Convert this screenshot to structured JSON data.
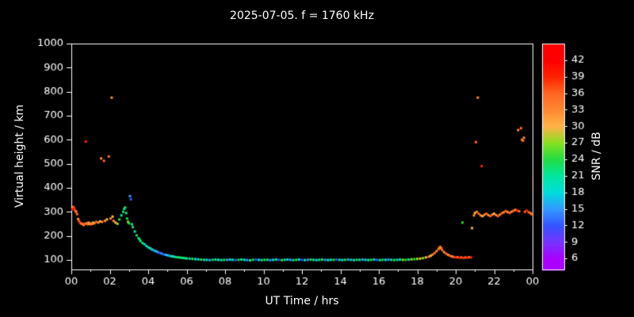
{
  "colors": {
    "background": "#000000",
    "text": "#ffffff",
    "frame": "#ffffff"
  },
  "chart_data": {
    "type": "scatter",
    "title": "2025-07-05. f = 1760 kHz",
    "xlabel": "UT Time / hrs",
    "ylabel": "Virtual height / km",
    "xlim": [
      0,
      24
    ],
    "ylim": [
      60,
      1000
    ],
    "x_ticks": [
      0,
      2,
      4,
      6,
      8,
      10,
      12,
      14,
      16,
      18,
      20,
      22,
      24
    ],
    "x_tick_labels": [
      "00",
      "02",
      "04",
      "06",
      "08",
      "10",
      "12",
      "14",
      "16",
      "18",
      "20",
      "22",
      "00"
    ],
    "x_minor_ticks": [
      1,
      3,
      5,
      7,
      9,
      11,
      13,
      15,
      17,
      19,
      21,
      23
    ],
    "y_ticks": [
      100,
      200,
      300,
      400,
      500,
      600,
      700,
      800,
      900,
      1000
    ],
    "y_tick_labels": [
      "100",
      "200",
      "300",
      "400",
      "500",
      "600",
      "700",
      "800",
      "900",
      "1000"
    ],
    "grid": false,
    "colorbar": {
      "label": "SNR / dB",
      "min": 4,
      "max": 45,
      "ticks": [
        6,
        9,
        12,
        15,
        18,
        21,
        24,
        27,
        30,
        33,
        36,
        39,
        42
      ],
      "colormap": [
        [
          6,
          "#aa00ff"
        ],
        [
          9,
          "#7733ff"
        ],
        [
          12,
          "#3355ff"
        ],
        [
          15,
          "#3399ff"
        ],
        [
          18,
          "#00dddd"
        ],
        [
          21,
          "#00e6a0"
        ],
        [
          24,
          "#22dd44"
        ],
        [
          27,
          "#88e022"
        ],
        [
          30,
          "#ffb347"
        ],
        [
          33,
          "#ff8833"
        ],
        [
          36,
          "#ff6622"
        ],
        [
          39,
          "#ff2200"
        ],
        [
          42,
          "#ff0000"
        ]
      ]
    },
    "points": [
      [
        0.05,
        310,
        39
      ],
      [
        0.1,
        320,
        36
      ],
      [
        0.15,
        315,
        39
      ],
      [
        0.2,
        305,
        36
      ],
      [
        0.25,
        300,
        33
      ],
      [
        0.3,
        290,
        36
      ],
      [
        0.35,
        270,
        33
      ],
      [
        0.4,
        262,
        36
      ],
      [
        0.45,
        255,
        39
      ],
      [
        0.5,
        252,
        36
      ],
      [
        0.55,
        250,
        33
      ],
      [
        0.6,
        248,
        36
      ],
      [
        0.65,
        245,
        33
      ],
      [
        0.7,
        250,
        36
      ],
      [
        0.75,
        592,
        39
      ],
      [
        0.8,
        252,
        33
      ],
      [
        0.85,
        248,
        36
      ],
      [
        0.9,
        255,
        33
      ],
      [
        0.95,
        250,
        30
      ],
      [
        1.0,
        248,
        33
      ],
      [
        1.05,
        252,
        36
      ],
      [
        1.1,
        250,
        33
      ],
      [
        1.15,
        255,
        30
      ],
      [
        1.2,
        252,
        33
      ],
      [
        1.3,
        258,
        36
      ],
      [
        1.4,
        255,
        33
      ],
      [
        1.5,
        260,
        30
      ],
      [
        1.55,
        522,
        33
      ],
      [
        1.6,
        258,
        33
      ],
      [
        1.7,
        512,
        36
      ],
      [
        1.75,
        262,
        33
      ],
      [
        1.85,
        268,
        30
      ],
      [
        1.95,
        530,
        36
      ],
      [
        2.05,
        272,
        33
      ],
      [
        2.1,
        775,
        33
      ],
      [
        2.15,
        280,
        30
      ],
      [
        2.2,
        262,
        33
      ],
      [
        2.3,
        255,
        30
      ],
      [
        2.4,
        250,
        27
      ],
      [
        2.5,
        268,
        24
      ],
      [
        2.6,
        285,
        21
      ],
      [
        2.7,
        300,
        24
      ],
      [
        2.75,
        312,
        21
      ],
      [
        2.8,
        318,
        24
      ],
      [
        2.85,
        295,
        21
      ],
      [
        2.9,
        272,
        24
      ],
      [
        2.95,
        258,
        27
      ],
      [
        3.0,
        252,
        24
      ],
      [
        3.05,
        365,
        15
      ],
      [
        3.1,
        352,
        12
      ],
      [
        3.15,
        248,
        21
      ],
      [
        3.2,
        236,
        24
      ],
      [
        3.3,
        218,
        21
      ],
      [
        3.4,
        202,
        24
      ],
      [
        3.5,
        190,
        21
      ],
      [
        3.55,
        185,
        24
      ],
      [
        3.6,
        178,
        21
      ],
      [
        3.7,
        170,
        24
      ],
      [
        3.8,
        165,
        18
      ],
      [
        3.9,
        158,
        21
      ],
      [
        4.0,
        152,
        18
      ],
      [
        4.1,
        148,
        21
      ],
      [
        4.2,
        143,
        18
      ],
      [
        4.3,
        139,
        15
      ],
      [
        4.4,
        136,
        18
      ],
      [
        4.5,
        132,
        15
      ],
      [
        4.6,
        129,
        12
      ],
      [
        4.7,
        126,
        15
      ],
      [
        4.8,
        123,
        12
      ],
      [
        4.9,
        121,
        15
      ],
      [
        5.0,
        119,
        18
      ],
      [
        5.1,
        117,
        15
      ],
      [
        5.2,
        115,
        21
      ],
      [
        5.3,
        114,
        18
      ],
      [
        5.4,
        112,
        21
      ],
      [
        5.5,
        111,
        24
      ],
      [
        5.6,
        110,
        21
      ],
      [
        5.7,
        109,
        24
      ],
      [
        5.8,
        108,
        21
      ],
      [
        5.9,
        107,
        24
      ],
      [
        6.0,
        106,
        21
      ],
      [
        6.15,
        105,
        21
      ],
      [
        6.3,
        104,
        24
      ],
      [
        6.45,
        103,
        18
      ],
      [
        6.6,
        102,
        21
      ],
      [
        6.75,
        101,
        24
      ],
      [
        6.9,
        100,
        18
      ],
      [
        7.05,
        100,
        21
      ],
      [
        7.2,
        99,
        15
      ],
      [
        7.35,
        100,
        24
      ],
      [
        7.5,
        101,
        21
      ],
      [
        7.65,
        100,
        18
      ],
      [
        7.8,
        99,
        21
      ],
      [
        7.95,
        100,
        24
      ],
      [
        8.1,
        100,
        15
      ],
      [
        8.25,
        101,
        18
      ],
      [
        8.4,
        100,
        21
      ],
      [
        8.55,
        99,
        12
      ],
      [
        8.7,
        100,
        24
      ],
      [
        8.85,
        101,
        21
      ],
      [
        9.0,
        100,
        18
      ],
      [
        9.15,
        99,
        15
      ],
      [
        9.3,
        98,
        21
      ],
      [
        9.45,
        100,
        24
      ],
      [
        9.6,
        101,
        12
      ],
      [
        9.75,
        100,
        18
      ],
      [
        9.9,
        99,
        21
      ],
      [
        10.05,
        100,
        24
      ],
      [
        10.2,
        100,
        21
      ],
      [
        10.35,
        99,
        15
      ],
      [
        10.5,
        100,
        18
      ],
      [
        10.65,
        101,
        21
      ],
      [
        10.8,
        100,
        12
      ],
      [
        10.95,
        99,
        24
      ],
      [
        11.1,
        100,
        21
      ],
      [
        11.25,
        101,
        18
      ],
      [
        11.4,
        100,
        15
      ],
      [
        11.55,
        99,
        21
      ],
      [
        11.7,
        100,
        24
      ],
      [
        11.85,
        101,
        18
      ],
      [
        12.0,
        100,
        12
      ],
      [
        12.15,
        99,
        21
      ],
      [
        12.3,
        100,
        15
      ],
      [
        12.45,
        101,
        24
      ],
      [
        12.6,
        100,
        21
      ],
      [
        12.75,
        99,
        18
      ],
      [
        12.9,
        100,
        21
      ],
      [
        13.05,
        101,
        24
      ],
      [
        13.2,
        100,
        15
      ],
      [
        13.35,
        99,
        18
      ],
      [
        13.5,
        100,
        21
      ],
      [
        13.65,
        100,
        24
      ],
      [
        13.8,
        101,
        12
      ],
      [
        13.95,
        100,
        21
      ],
      [
        14.1,
        99,
        18
      ],
      [
        14.25,
        100,
        24
      ],
      [
        14.4,
        101,
        15
      ],
      [
        14.55,
        100,
        21
      ],
      [
        14.7,
        99,
        18
      ],
      [
        14.85,
        100,
        24
      ],
      [
        15.0,
        100,
        21
      ],
      [
        15.15,
        101,
        15
      ],
      [
        15.3,
        100,
        18
      ],
      [
        15.45,
        99,
        21
      ],
      [
        15.6,
        100,
        24
      ],
      [
        15.75,
        101,
        18
      ],
      [
        15.9,
        100,
        12
      ],
      [
        16.05,
        99,
        21
      ],
      [
        16.2,
        100,
        24
      ],
      [
        16.35,
        100,
        18
      ],
      [
        16.5,
        101,
        15
      ],
      [
        16.65,
        100,
        21
      ],
      [
        16.8,
        99,
        24
      ],
      [
        16.95,
        100,
        18
      ],
      [
        17.1,
        101,
        21
      ],
      [
        17.25,
        100,
        27
      ],
      [
        17.4,
        100,
        24
      ],
      [
        17.55,
        101,
        21
      ],
      [
        17.7,
        102,
        27
      ],
      [
        17.85,
        103,
        24
      ],
      [
        18.0,
        104,
        27
      ],
      [
        18.15,
        105,
        30
      ],
      [
        18.3,
        107,
        27
      ],
      [
        18.45,
        110,
        30
      ],
      [
        18.6,
        113,
        33
      ],
      [
        18.7,
        117,
        30
      ],
      [
        18.8,
        122,
        33
      ],
      [
        18.9,
        128,
        36
      ],
      [
        19.0,
        136,
        33
      ],
      [
        19.1,
        144,
        36
      ],
      [
        19.15,
        150,
        33
      ],
      [
        19.2,
        154,
        36
      ],
      [
        19.25,
        148,
        33
      ],
      [
        19.3,
        140,
        36
      ],
      [
        19.4,
        132,
        33
      ],
      [
        19.5,
        126,
        36
      ],
      [
        19.6,
        121,
        33
      ],
      [
        19.7,
        117,
        36
      ],
      [
        19.8,
        114,
        33
      ],
      [
        19.9,
        112,
        36
      ],
      [
        20.0,
        110,
        39
      ],
      [
        20.1,
        111,
        36
      ],
      [
        20.2,
        109,
        39
      ],
      [
        20.3,
        110,
        36
      ],
      [
        20.4,
        108,
        39
      ],
      [
        20.5,
        110,
        36
      ],
      [
        20.6,
        109,
        39
      ],
      [
        20.7,
        111,
        36
      ],
      [
        20.8,
        110,
        39
      ],
      [
        20.35,
        255,
        24
      ],
      [
        20.85,
        232,
        30
      ],
      [
        20.95,
        285,
        33
      ],
      [
        21.0,
        295,
        30
      ],
      [
        21.05,
        590,
        36
      ],
      [
        21.1,
        300,
        33
      ],
      [
        21.15,
        775,
        33
      ],
      [
        21.2,
        292,
        36
      ],
      [
        21.3,
        285,
        33
      ],
      [
        21.35,
        490,
        39
      ],
      [
        21.4,
        282,
        30
      ],
      [
        21.5,
        288,
        33
      ],
      [
        21.6,
        292,
        36
      ],
      [
        21.7,
        286,
        33
      ],
      [
        21.8,
        282,
        36
      ],
      [
        21.9,
        288,
        33
      ],
      [
        22.0,
        292,
        30
      ],
      [
        22.1,
        286,
        33
      ],
      [
        22.2,
        282,
        36
      ],
      [
        22.3,
        288,
        33
      ],
      [
        22.4,
        294,
        36
      ],
      [
        22.5,
        298,
        33
      ],
      [
        22.6,
        303,
        36
      ],
      [
        22.7,
        299,
        33
      ],
      [
        22.8,
        295,
        36
      ],
      [
        22.9,
        300,
        33
      ],
      [
        23.0,
        304,
        36
      ],
      [
        23.1,
        308,
        33
      ],
      [
        23.2,
        305,
        39
      ],
      [
        23.25,
        640,
        33
      ],
      [
        23.3,
        302,
        36
      ],
      [
        23.4,
        648,
        36
      ],
      [
        23.45,
        600,
        33
      ],
      [
        23.5,
        596,
        36
      ],
      [
        23.55,
        608,
        33
      ],
      [
        23.6,
        300,
        36
      ],
      [
        23.7,
        305,
        39
      ],
      [
        23.8,
        298,
        36
      ],
      [
        23.9,
        294,
        33
      ],
      [
        23.95,
        290,
        36
      ]
    ]
  }
}
